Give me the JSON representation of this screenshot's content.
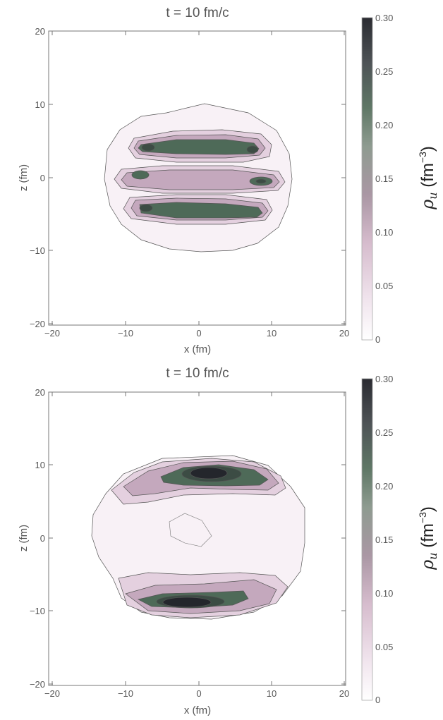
{
  "chart_data": [
    {
      "type": "contour",
      "title": "t = 10 fm/c",
      "xlabel": "x (fm)",
      "ylabel": "z (fm)",
      "xlim": [
        -20,
        20
      ],
      "ylim": [
        -20,
        20
      ],
      "xticks": [
        "−20",
        "−10",
        "0",
        "10",
        "20"
      ],
      "yticks": [
        "20",
        "10",
        "0",
        "−10",
        "−20"
      ],
      "colorbar": {
        "label_main": "ρ",
        "label_sub": "u",
        "label_unit_open": " (fm",
        "label_unit_exp": "−3",
        "label_unit_close": ")",
        "ticks": [
          "0.30",
          "0.25",
          "0.20",
          "0.15",
          "0.10",
          "0.05",
          "0"
        ],
        "range": [
          0,
          0.3
        ]
      },
      "regions": [
        {
          "shape": "outer envelope",
          "cx": 0,
          "cz": 0,
          "rx": 12.5,
          "rz": 10,
          "density": 0.02
        },
        {
          "shape": "upper band",
          "cx": 0,
          "cz": 4.3,
          "rx": 8.5,
          "rz": 1.5,
          "density": 0.15
        },
        {
          "shape": "middle band",
          "cx": 0,
          "cz": 0,
          "rx": 10,
          "rz": 1.5,
          "density": 0.08
        },
        {
          "shape": "lower band",
          "cx": 0,
          "cz": -4.3,
          "rx": 8.5,
          "rz": 1.5,
          "density": 0.16
        },
        {
          "shape": "middle peaks",
          "points": [
            [
              -7.5,
              0.3
            ],
            [
              8.5,
              -0.5
            ]
          ],
          "density": 0.14
        }
      ]
    },
    {
      "type": "contour",
      "title": "t = 10 fm/c",
      "xlabel": "x (fm)",
      "ylabel": "z (fm)",
      "xlim": [
        -20,
        20
      ],
      "ylim": [
        -20,
        20
      ],
      "xticks": [
        "−20",
        "−10",
        "0",
        "10",
        "20"
      ],
      "yticks": [
        "20",
        "10",
        "0",
        "−10",
        "−20"
      ],
      "colorbar": {
        "label_main": "ρ",
        "label_sub": "u",
        "label_unit_open": " (fm",
        "label_unit_exp": "−3",
        "label_unit_close": ")",
        "ticks": [
          "0.30",
          "0.25",
          "0.20",
          "0.15",
          "0.10",
          "0.05",
          "0"
        ],
        "range": [
          0,
          0.3
        ]
      },
      "regions": [
        {
          "shape": "outer envelope",
          "cx": 0,
          "cz": 0,
          "rx": 14.5,
          "rz": 11,
          "density": 0.02
        },
        {
          "shape": "upper cap",
          "cx": 1.5,
          "cz": 9,
          "rx": 9,
          "rz": 1.8,
          "density": 0.25
        },
        {
          "shape": "lower cap",
          "cx": 0,
          "cz": -8.8,
          "rx": 9,
          "rz": 1.8,
          "density": 0.27
        }
      ]
    }
  ],
  "colors": {
    "c0": "#f8f1f6",
    "c1": "#e4d0df",
    "c2": "#c4a8bd",
    "c3": "#9a8a97",
    "c4": "#4e6a58",
    "c5": "#3c4c44",
    "c6": "#24262c",
    "contour_line": "#555555"
  }
}
